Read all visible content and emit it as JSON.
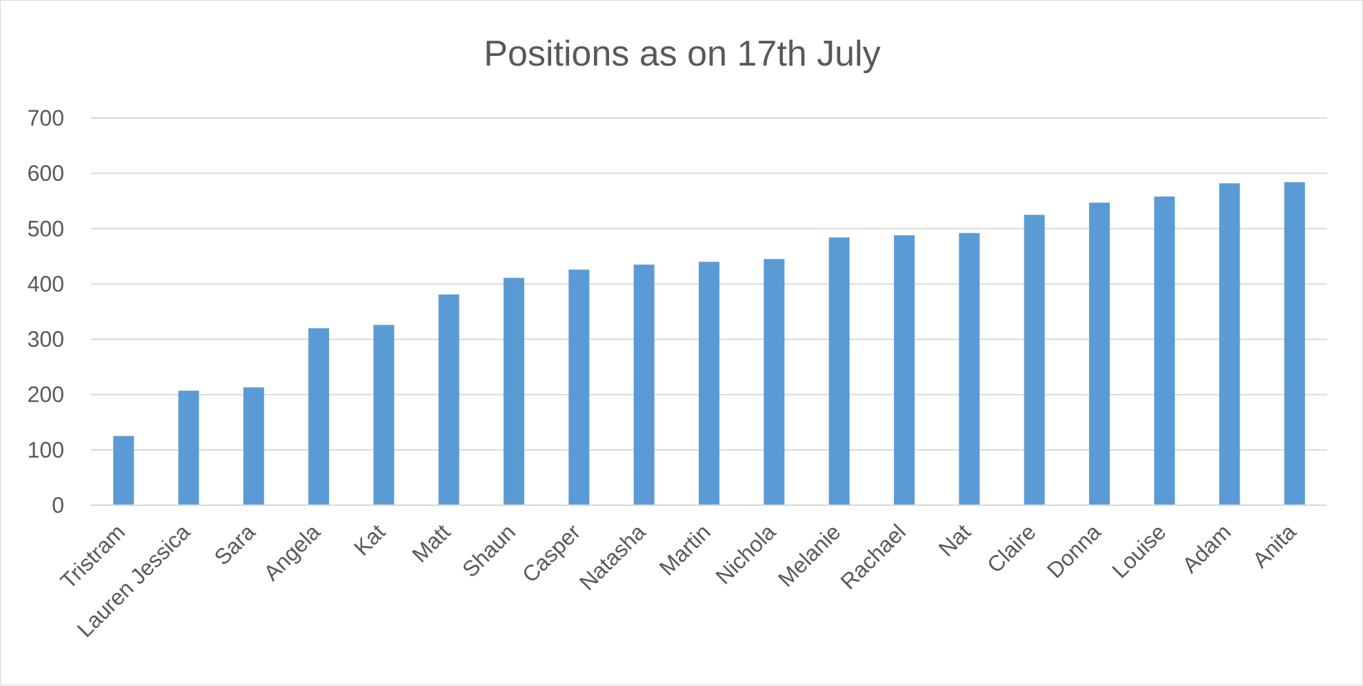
{
  "chart_data": {
    "type": "bar",
    "title": "Positions as on 17th July",
    "xlabel": "",
    "ylabel": "",
    "categories": [
      "Tristram",
      "Lauren Jessica",
      "Sara",
      "Angela",
      "Kat",
      "Matt",
      "Shaun",
      "Casper",
      "Natasha",
      "Martin",
      "Nichola",
      "Melanie",
      "Rachael",
      "Nat",
      "Claire",
      "Donna",
      "Louise",
      "Adam",
      "Anita"
    ],
    "values": [
      125,
      207,
      213,
      320,
      326,
      381,
      411,
      426,
      435,
      440,
      445,
      484,
      488,
      492,
      525,
      547,
      558,
      582,
      584
    ],
    "ylim": [
      0,
      700
    ],
    "yticks": [
      0,
      100,
      200,
      300,
      400,
      500,
      600,
      700
    ],
    "grid": true,
    "legend": "none",
    "bar_color": "#5b9bd5"
  }
}
